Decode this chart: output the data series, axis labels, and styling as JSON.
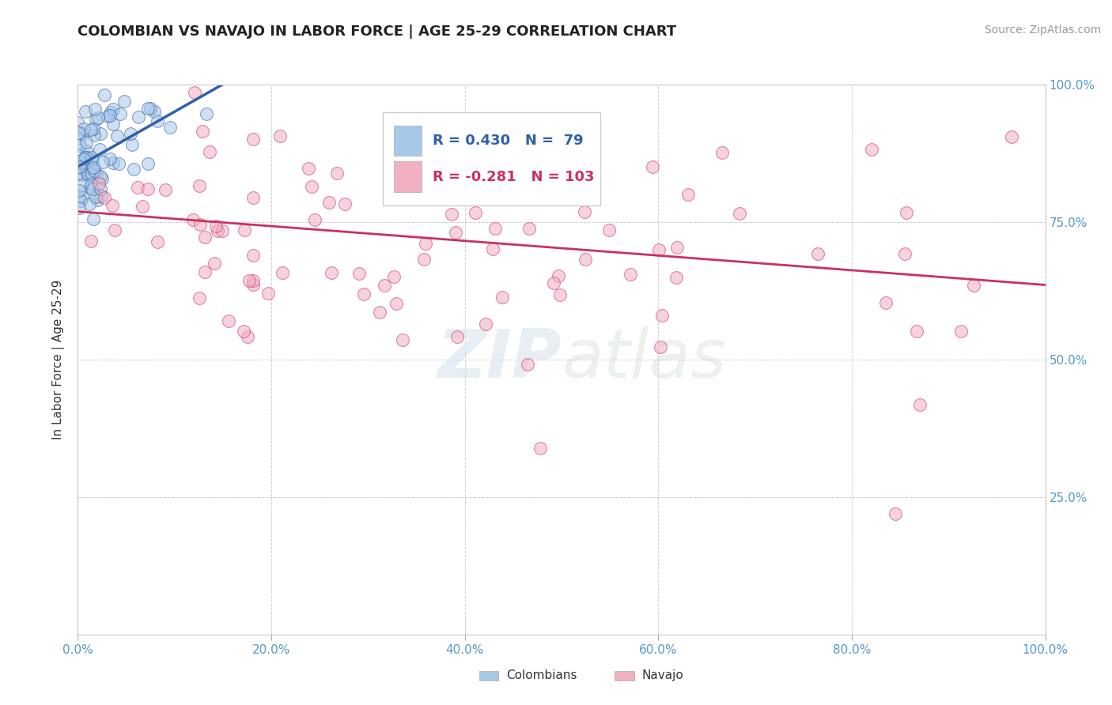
{
  "title": "COLOMBIAN VS NAVAJO IN LABOR FORCE | AGE 25-29 CORRELATION CHART",
  "source": "Source: ZipAtlas.com",
  "ylabel": "In Labor Force | Age 25-29",
  "watermark_zip": "ZIP",
  "watermark_atlas": "atlas",
  "colombian_R": 0.43,
  "colombian_N": 79,
  "navajo_R": -0.281,
  "navajo_N": 103,
  "colombian_color": "#a8c8e8",
  "navajo_color": "#f0b0c0",
  "colombian_line_color": "#3060a8",
  "navajo_line_color": "#cc3060",
  "bg_color": "#ffffff",
  "xlim": [
    0.0,
    1.0
  ],
  "ylim": [
    0.0,
    1.0
  ],
  "xticks": [
    0.0,
    0.2,
    0.4,
    0.6,
    0.8,
    1.0
  ],
  "yticks": [
    0.0,
    0.25,
    0.5,
    0.75,
    1.0
  ],
  "xtick_labels": [
    "0.0%",
    "20.0%",
    "40.0%",
    "60.0%",
    "80.0%",
    "100.0%"
  ],
  "ytick_labels_right": [
    "",
    "25.0%",
    "50.0%",
    "75.0%",
    "100.0%"
  ],
  "grid_color": "#d0d0d0",
  "title_fontsize": 13,
  "axis_label_fontsize": 11,
  "tick_fontsize": 11,
  "legend_fontsize": 13,
  "source_fontsize": 10,
  "legend_label1": "Colombians",
  "legend_label2": "Navajo"
}
